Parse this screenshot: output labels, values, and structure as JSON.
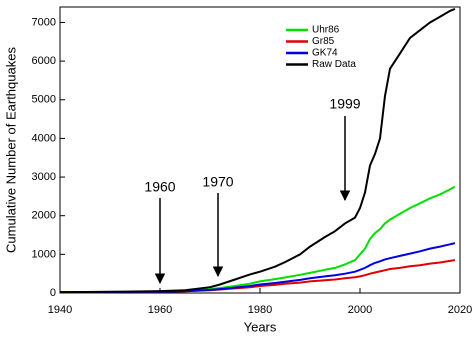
{
  "chart_data": {
    "type": "line",
    "x_label": "Years",
    "y_label": "Cumulative Number of Earthquakes",
    "annotations": [
      "1960",
      "1970",
      "1999"
    ],
    "x": [
      1940,
      1945,
      1950,
      1955,
      1960,
      1965,
      1970,
      1972,
      1975,
      1978,
      1980,
      1983,
      1985,
      1988,
      1990,
      1993,
      1995,
      1997,
      1999,
      2000,
      2001,
      2002,
      2003,
      2004,
      2005,
      2006,
      2008,
      2010,
      2012,
      2014,
      2016,
      2018,
      2019
    ],
    "series": [
      {
        "name": "Uhr86",
        "color": "#00e000",
        "values": [
          20,
          22,
          25,
          30,
          40,
          60,
          100,
          130,
          180,
          240,
          300,
          360,
          400,
          470,
          520,
          600,
          650,
          740,
          850,
          1000,
          1150,
          1400,
          1550,
          1650,
          1800,
          1900,
          2050,
          2200,
          2320,
          2450,
          2550,
          2680,
          2750
        ]
      },
      {
        "name": "Gr85",
        "color": "#e00000",
        "values": [
          20,
          22,
          24,
          28,
          33,
          45,
          70,
          90,
          120,
          150,
          180,
          210,
          240,
          270,
          300,
          330,
          350,
          380,
          410,
          430,
          460,
          500,
          530,
          560,
          590,
          620,
          650,
          690,
          720,
          760,
          790,
          830,
          850
        ]
      },
      {
        "name": "GK74",
        "color": "#0000e0",
        "values": [
          20,
          22,
          24,
          28,
          35,
          50,
          80,
          100,
          140,
          180,
          220,
          260,
          290,
          340,
          380,
          430,
          460,
          500,
          550,
          600,
          650,
          720,
          780,
          820,
          870,
          900,
          960,
          1020,
          1080,
          1150,
          1200,
          1260,
          1290
        ]
      },
      {
        "name": "Raw Data",
        "color": "#000000",
        "values": [
          20,
          25,
          30,
          40,
          50,
          70,
          150,
          220,
          350,
          480,
          550,
          680,
          800,
          1000,
          1200,
          1450,
          1600,
          1800,
          1950,
          2200,
          2600,
          3300,
          3600,
          4000,
          5100,
          5800,
          6200,
          6600,
          6800,
          7000,
          7150,
          7300,
          7350
        ]
      }
    ],
    "xlim": [
      1940,
      2020
    ],
    "xticks": [
      1940,
      1960,
      1980,
      2000,
      2020
    ],
    "ylim": [
      0,
      7400
    ],
    "yticks": [
      0,
      1000,
      2000,
      3000,
      4000,
      5000,
      6000,
      7000
    ],
    "grid": false
  }
}
